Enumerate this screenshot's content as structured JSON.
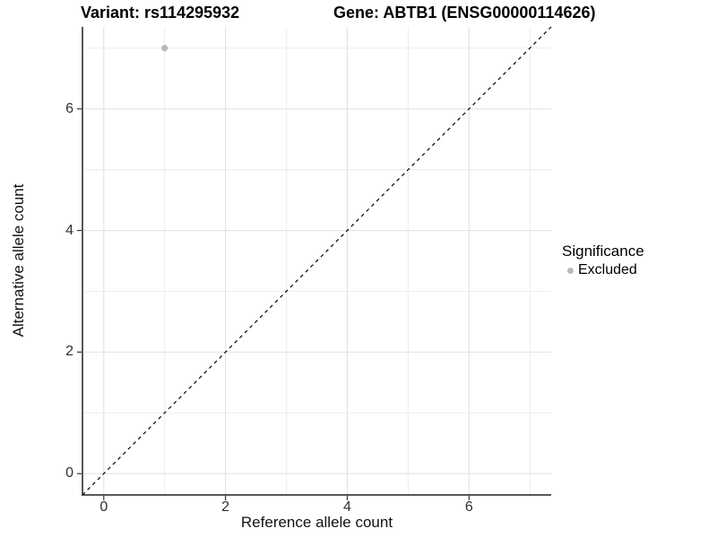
{
  "header": {
    "title_variant": "Variant: rs114295932",
    "title_gene": "Gene: ABTB1 (ENSG00000114626)"
  },
  "legend": {
    "title": "Significance",
    "position": "right",
    "items": [
      {
        "label": "Excluded",
        "marker": "circle",
        "color": "#b9b9b9"
      }
    ]
  },
  "chart_data": {
    "type": "scatter",
    "title": "Variant: rs114295932    Gene: ABTB1 (ENSG00000114626)",
    "xlabel": "Reference allele count",
    "ylabel": "Alternative allele count",
    "xlim": [
      -0.35,
      7.35
    ],
    "ylim": [
      -0.35,
      7.35
    ],
    "x_ticks": [
      0,
      2,
      4,
      6
    ],
    "y_ticks": [
      0,
      2,
      4,
      6
    ],
    "x_minor_ticks": [
      1,
      3,
      5,
      7
    ],
    "y_minor_ticks": [
      1,
      3,
      5,
      7
    ],
    "grid": true,
    "series": [
      {
        "name": "Excluded",
        "color": "#b9b9b9",
        "points": [
          {
            "x": 1,
            "y": 7
          }
        ]
      }
    ],
    "reference_line": {
      "type": "identity",
      "slope": 1,
      "intercept": 0,
      "style": "dashed",
      "color": "#000000"
    },
    "colors": {
      "major_grid": "#e2e2e2",
      "minor_grid": "#ececec",
      "axis_line": "#585858",
      "tick_mark": "#333333",
      "background": "#ffffff"
    }
  }
}
